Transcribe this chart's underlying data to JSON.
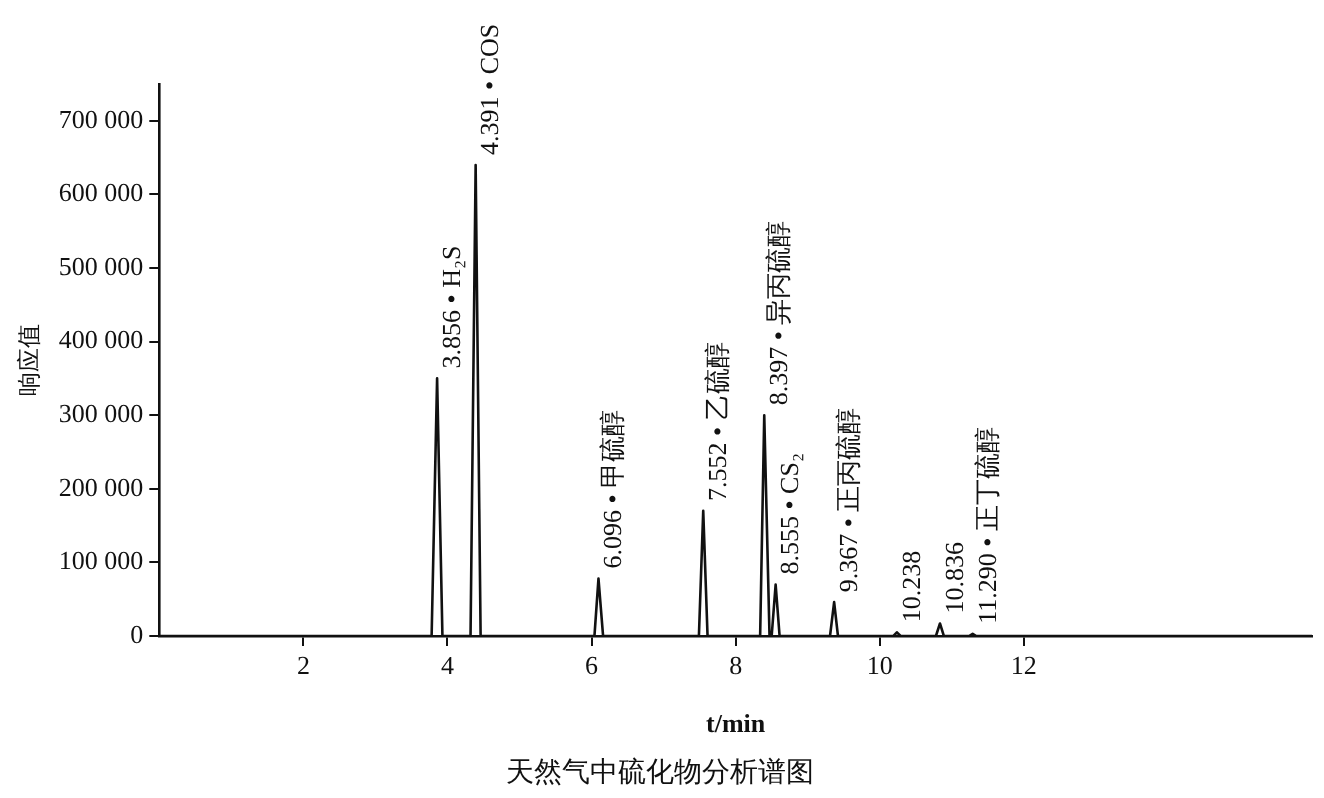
{
  "chart_data": {
    "type": "line",
    "title": "天然气中硫化物分析谱图",
    "xlabel": "t/min",
    "ylabel": "响应值",
    "series": [
      {
        "color": "#111111",
        "x": [
          0,
          3.78,
          3.856,
          3.93,
          4.32,
          4.391,
          4.46,
          6.04,
          6.096,
          6.16,
          7.49,
          7.55,
          7.61,
          8.34,
          8.397,
          8.47,
          8.5,
          8.555,
          8.61,
          9.31,
          9.367,
          9.42,
          10.19,
          10.238,
          10.29,
          10.78,
          10.836,
          10.89,
          11.24,
          11.29,
          11.34,
          16
        ],
        "values": [
          0,
          0,
          350000,
          0,
          0,
          640000,
          0,
          0,
          78000,
          0,
          0,
          170000,
          0,
          0,
          300000,
          0,
          0,
          70000,
          0,
          0,
          46000,
          0,
          0,
          5000,
          0,
          0,
          17000,
          0,
          0,
          3000,
          0,
          0
        ]
      }
    ],
    "xlim": [
      0,
      16
    ],
    "xticks": [
      2,
      4,
      6,
      8,
      10,
      12
    ],
    "ylim": [
      0,
      750000
    ],
    "yticks": [
      {
        "value": 0,
        "label": "0"
      },
      {
        "value": 100000,
        "label": "100 000"
      },
      {
        "value": 200000,
        "label": "200 000"
      },
      {
        "value": 300000,
        "label": "300 000"
      },
      {
        "value": 400000,
        "label": "400 000"
      },
      {
        "value": 500000,
        "label": "500 000"
      },
      {
        "value": 600000,
        "label": "600 000"
      },
      {
        "value": 700000,
        "label": "700 000"
      }
    ],
    "marker": "none",
    "line_style": "solid",
    "legend": false,
    "annotations": [
      {
        "text": "3.856 • H₂S",
        "x": 3.856,
        "y": 350000
      },
      {
        "text": "4.391 • COS",
        "x": 4.391,
        "y": 640000
      },
      {
        "text": "6.096 • 甲硫醇",
        "x": 6.096,
        "y": 78000
      },
      {
        "text": "7.552 • 乙硫醇",
        "x": 7.55,
        "y": 170000
      },
      {
        "text": "8.397 • 异丙硫醇",
        "x": 8.397,
        "y": 300000
      },
      {
        "text": "8.555 • CS₂",
        "x": 8.555,
        "y": 70000
      },
      {
        "text": "9.367 • 正丙硫醇",
        "x": 9.367,
        "y": 46000
      },
      {
        "text": "10.238",
        "x": 10.238,
        "y": 5000
      },
      {
        "text": "10.836",
        "x": 10.836,
        "y": 17000
      },
      {
        "text": "11.290 • 正丁硫醇",
        "x": 11.29,
        "y": 3000
      }
    ]
  }
}
